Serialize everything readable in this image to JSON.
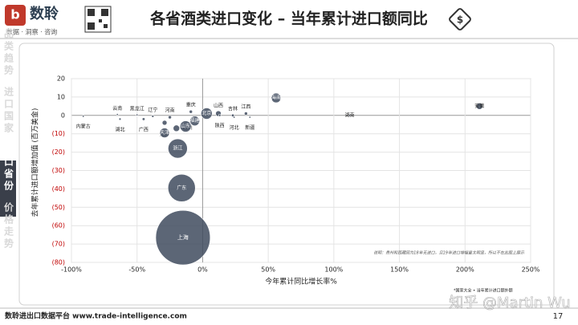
{
  "header": {
    "brand": "数聆",
    "tagline": "数据 · 洞察 · 咨询",
    "title": "各省酒类进口变化 – 当年累计进口额同比"
  },
  "sidebar": [
    "品类趋势",
    "进口国家",
    "进口省份",
    "价格走势"
  ],
  "sidebar_active": 2,
  "footer": {
    "platform": "数聆进出口数据平台 www.trade-intelligence.com",
    "page": "17",
    "watermark": "知乎 @Martin Wu"
  },
  "chart_data": {
    "type": "scatter",
    "x_label": "今年累计同比增长率%",
    "y_label": "去年累计进口额增加值 (百万美金)",
    "note": "说明：贵州和西藏因为18年无进口，且19年进口增幅量太明显，所以不在此图上展示",
    "source": "*国家大全 • 当年累计进口额外额",
    "color": "#3f4b5e",
    "negative_tick_color": "#c00000",
    "xlim": [
      -100,
      250
    ],
    "ylim": [
      -80,
      20
    ],
    "xticks": [
      {
        "value": -100,
        "label": "-100%"
      },
      {
        "value": -50,
        "label": "-50%"
      },
      {
        "value": 0,
        "label": "0%"
      },
      {
        "value": 50,
        "label": "50%"
      },
      {
        "value": 100,
        "label": "100%"
      },
      {
        "value": 150,
        "label": "150%"
      },
      {
        "value": 200,
        "label": "200%"
      },
      {
        "value": 250,
        "label": "250%"
      }
    ],
    "yticks": [
      20,
      10,
      0,
      {
        "value": -10,
        "label": "(10)"
      },
      {
        "value": -20,
        "label": "(20)"
      },
      {
        "value": -30,
        "label": "(30)"
      },
      {
        "value": -40,
        "label": "(40)"
      },
      {
        "value": -50,
        "label": "(50)"
      },
      {
        "value": -60,
        "label": "(60)"
      },
      {
        "value": -70,
        "label": "(70)"
      },
      {
        "value": -80,
        "label": "(80)"
      }
    ],
    "points": [
      {
        "name": "内蒙古",
        "x": -91,
        "y": -0.5,
        "size": 1
      },
      {
        "name": "云南",
        "x": -65,
        "y": 0.5,
        "size": 1
      },
      {
        "name": "湖北",
        "x": -63,
        "y": -2,
        "size": 2
      },
      {
        "name": "黑龙江",
        "x": -50,
        "y": 0.3,
        "size": 1
      },
      {
        "name": "辽宁",
        "x": -38,
        "y": -0.5,
        "size": 2
      },
      {
        "name": "广西",
        "x": -45,
        "y": -2,
        "size": 3
      },
      {
        "name": "江苏",
        "x": -29,
        "y": -4,
        "size": 9
      },
      {
        "name": "河南",
        "x": -25,
        "y": -1,
        "size": 4
      },
      {
        "name": "天津",
        "x": -29,
        "y": -9.5,
        "size": 36
      },
      {
        "name": "四川",
        "x": -20,
        "y": -7,
        "size": 16
      },
      {
        "name": "重庆",
        "x": -9,
        "y": 2,
        "size": 4
      },
      {
        "name": "山东",
        "x": -13,
        "y": -6,
        "size": 49
      },
      {
        "name": "福建",
        "x": -6,
        "y": -3,
        "size": 36
      },
      {
        "name": "北京",
        "x": 3,
        "y": 1,
        "size": 49
      },
      {
        "name": "山西",
        "x": 12,
        "y": 1,
        "size": 12
      },
      {
        "name": "陕西",
        "x": 13,
        "y": 0,
        "size": 2
      },
      {
        "name": "吉林",
        "x": 23,
        "y": 0,
        "size": 3
      },
      {
        "name": "河北",
        "x": 24,
        "y": -1,
        "size": 1
      },
      {
        "name": "江西",
        "x": 33,
        "y": 1,
        "size": 4
      },
      {
        "name": "新疆",
        "x": 36,
        "y": -1,
        "size": 1
      },
      {
        "name": "海南",
        "x": 56,
        "y": 9.5,
        "size": 36
      },
      {
        "name": "湖南",
        "x": 112,
        "y": 0,
        "size": 1
      },
      {
        "name": "安徽",
        "x": 211,
        "y": 5,
        "size": 16
      },
      {
        "name": "浙江",
        "x": -19,
        "y": -18,
        "size": 144
      },
      {
        "name": "广东",
        "x": -16,
        "y": -39.5,
        "size": 290
      },
      {
        "name": "上海",
        "x": -15,
        "y": -66.5,
        "size": 1150
      }
    ]
  }
}
